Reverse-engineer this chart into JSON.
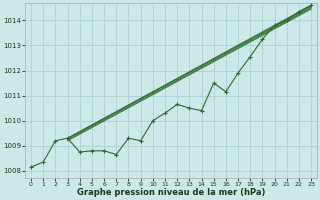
{
  "xlabel": "Graphe pression niveau de la mer (hPa)",
  "bg_color": "#cce8e8",
  "grid_color": "#aacccc",
  "line_color": "#2d6a2d",
  "xlim": [
    -0.5,
    23.5
  ],
  "ylim": [
    1007.7,
    1014.7
  ],
  "yticks": [
    1008,
    1009,
    1010,
    1011,
    1012,
    1013,
    1014
  ],
  "xticks": [
    0,
    1,
    2,
    3,
    4,
    5,
    6,
    7,
    8,
    9,
    10,
    11,
    12,
    13,
    14,
    15,
    16,
    17,
    18,
    19,
    20,
    21,
    22,
    23
  ],
  "main_x": [
    0,
    1,
    2,
    3,
    4,
    5,
    6,
    7,
    8,
    9,
    10,
    11,
    12,
    13,
    14,
    15,
    16,
    17,
    18,
    19,
    20,
    21,
    22,
    23
  ],
  "main_y": [
    1008.15,
    1008.35,
    1009.2,
    1009.3,
    1008.75,
    1008.8,
    1008.8,
    1008.65,
    1009.3,
    1009.2,
    1010.0,
    1010.3,
    1010.65,
    1010.5,
    1010.4,
    1011.5,
    1011.15,
    1011.9,
    1012.55,
    1013.25,
    1013.8,
    1014.0,
    1014.35,
    1014.6
  ],
  "smooth_lines": [
    [
      3,
      1009.3,
      23,
      1014.6
    ],
    [
      3,
      1009.3,
      23,
      1014.55
    ],
    [
      3,
      1009.25,
      23,
      1014.5
    ],
    [
      3,
      1009.2,
      23,
      1014.45
    ]
  ]
}
